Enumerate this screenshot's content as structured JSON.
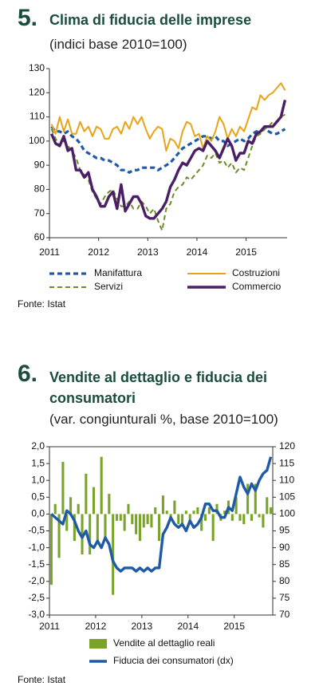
{
  "chart_data": [
    {
      "type": "line",
      "number": "5.",
      "title": "Clima di fiducia delle imprese",
      "subtitle": "(indici base 2010=100)",
      "categories": [
        "2011",
        null,
        null,
        null,
        null,
        null,
        null,
        null,
        null,
        null,
        null,
        null,
        "2012",
        null,
        null,
        null,
        null,
        null,
        null,
        null,
        null,
        null,
        null,
        null,
        "2013",
        null,
        null,
        null,
        null,
        null,
        null,
        null,
        null,
        null,
        null,
        null,
        "2014",
        null,
        null,
        null,
        null,
        null,
        null,
        null,
        null,
        null,
        null,
        null,
        "2015",
        null,
        null,
        null,
        null,
        null,
        null,
        null,
        null,
        null
      ],
      "ylim": [
        60,
        130
      ],
      "yticks": [
        60,
        70,
        80,
        90,
        100,
        110,
        120,
        130
      ],
      "series": [
        {
          "name": "Manifattura",
          "color": "#1f5aa6",
          "style": "dashed",
          "width": 3.2,
          "values": [
            106,
            104,
            104,
            103,
            104,
            102,
            101,
            99,
            96,
            95,
            94,
            93,
            93,
            92,
            92,
            91,
            90,
            88,
            88,
            87,
            88,
            88,
            89,
            89,
            89,
            89,
            88,
            89,
            90,
            91,
            93,
            95,
            97,
            98,
            99,
            100,
            101,
            102,
            102,
            101,
            102,
            100,
            100,
            98,
            99,
            100,
            101,
            100,
            101,
            103,
            104,
            104,
            105,
            104,
            103,
            103,
            104,
            105
          ]
        },
        {
          "name": "Costruzioni",
          "color": "#e8a317",
          "style": "solid",
          "width": 2,
          "values": [
            107,
            103,
            110,
            104,
            109,
            103,
            103,
            108,
            104,
            106,
            102,
            106,
            105,
            101,
            101,
            105,
            106,
            103,
            108,
            105,
            110,
            107,
            110,
            105,
            101,
            104,
            106,
            105,
            96,
            101,
            100,
            97,
            104,
            108,
            107,
            102,
            103,
            97,
            102,
            100,
            104,
            110,
            107,
            101,
            105,
            102,
            106,
            104,
            109,
            114,
            113,
            119,
            117,
            119,
            120,
            122,
            124,
            121
          ]
        },
        {
          "name": "Servizi",
          "color": "#6b8e23",
          "style": "dashed",
          "width": 2,
          "values": [
            105,
            101,
            98,
            100,
            98,
            96,
            93,
            88,
            86,
            84,
            79,
            76,
            74,
            77,
            79,
            80,
            76,
            73,
            73,
            75,
            72,
            72,
            75,
            73,
            70,
            72,
            67,
            63,
            72,
            74,
            79,
            81,
            82,
            85,
            84,
            86,
            88,
            90,
            94,
            93,
            95,
            91,
            92,
            89,
            91,
            87,
            89,
            88,
            93,
            98,
            102,
            103,
            105,
            106,
            108,
            108,
            110,
            111
          ]
        },
        {
          "name": "Commercio",
          "color": "#4b1f66",
          "style": "solid",
          "width": 3.4,
          "values": [
            103,
            99,
            98,
            102,
            96,
            97,
            88,
            88,
            85,
            87,
            80,
            77,
            73,
            73,
            77,
            79,
            72,
            82,
            71,
            74,
            77,
            77,
            74,
            69,
            68,
            68,
            70,
            72,
            75,
            81,
            84,
            88,
            91,
            90,
            93,
            96,
            97,
            96,
            100,
            98,
            96,
            93,
            97,
            101,
            98,
            92,
            95,
            95,
            100,
            99,
            103,
            104,
            106,
            106,
            106,
            108,
            110,
            117
          ]
        }
      ],
      "source": "Fonte: Istat"
    },
    {
      "type": "combo",
      "number": "6.",
      "title": "Vendite al dettaglio e fiducia dei consumatori",
      "subtitle": "(var. congiunturali %, base 2010=100)",
      "categories": [
        "2011",
        null,
        null,
        null,
        null,
        null,
        null,
        null,
        null,
        null,
        null,
        null,
        "2012",
        null,
        null,
        null,
        null,
        null,
        null,
        null,
        null,
        null,
        null,
        null,
        "2013",
        null,
        null,
        null,
        null,
        null,
        null,
        null,
        null,
        null,
        null,
        null,
        "2014",
        null,
        null,
        null,
        null,
        null,
        null,
        null,
        null,
        null,
        null,
        null,
        "2015",
        null,
        null,
        null,
        null,
        null,
        null,
        null,
        null,
        null
      ],
      "ylim": [
        -3,
        2
      ],
      "yticks": [
        {
          "value": -3,
          "label": "-3,0"
        },
        {
          "value": -2.5,
          "label": "-2,5"
        },
        {
          "value": -2,
          "label": "-2,0"
        },
        {
          "value": -1.5,
          "label": "-1,5"
        },
        {
          "value": -1,
          "label": "-1,0"
        },
        {
          "value": -0.5,
          "label": "-0,5"
        },
        {
          "value": 0,
          "label": "0,0"
        },
        {
          "value": 0.5,
          "label": "0,5"
        },
        {
          "value": 1,
          "label": "1,0"
        },
        {
          "value": 1.5,
          "label": "1,5"
        },
        {
          "value": 2,
          "label": "2,0"
        }
      ],
      "y2lim": [
        70,
        120
      ],
      "y2ticks": [
        70,
        75,
        80,
        85,
        90,
        95,
        100,
        105,
        110,
        115,
        120
      ],
      "series": [
        {
          "name": "Vendite al dettaglio reali",
          "type": "bar",
          "color": "#7aa32a",
          "values": [
            -2.1,
            0.3,
            -1.3,
            1.55,
            -0.5,
            0.5,
            -0.8,
            0.3,
            -1.2,
            1.2,
            -1.2,
            0.8,
            -0.9,
            1.7,
            -0.7,
            0.6,
            -2.4,
            -0.2,
            -0.2,
            -0.5,
            0.3,
            -0.3,
            -0.6,
            -0.8,
            -0.4,
            -0.3,
            -0.4,
            0.2,
            -0.8,
            0.55,
            0.1,
            -0.2,
            0.4,
            -0.3,
            -0.3,
            0.1,
            -0.2,
            0.1,
            0.2,
            -0.5,
            -0.2,
            0.2,
            -0.8,
            0.3,
            -0.2,
            0.1,
            0.4,
            -0.2,
            0.5,
            -0.2,
            -0.3,
            0.9,
            -0.2,
            0.9,
            -0.1,
            -0.4,
            0.5,
            0.2
          ]
        },
        {
          "name": "Fiducia dei consumatori (dx)",
          "type": "line",
          "axis": "y2",
          "color": "#1f5aa6",
          "style": "solid",
          "width": 3.4,
          "values": [
            100,
            99,
            98,
            97,
            101,
            100,
            98,
            95,
            93,
            95,
            91,
            90,
            92,
            90,
            93,
            91,
            86,
            84,
            83,
            84,
            84,
            84,
            83,
            84,
            83,
            84,
            83,
            84,
            84,
            94,
            96,
            99,
            97,
            96,
            97,
            95,
            98,
            96,
            97,
            99,
            103,
            103,
            101,
            101,
            99,
            99,
            102,
            101,
            106,
            111,
            108,
            106,
            109,
            107,
            110,
            112,
            113,
            117
          ]
        }
      ],
      "source": "Fonte: Istat"
    }
  ]
}
